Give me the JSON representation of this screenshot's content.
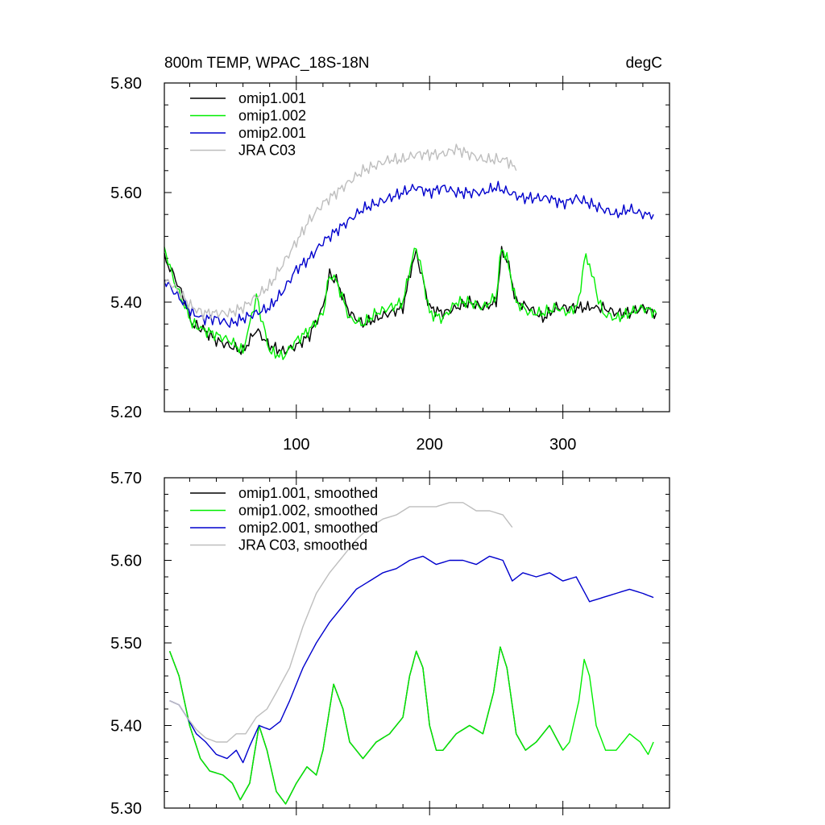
{
  "colors": {
    "omip1_001": "#000000",
    "omip1_002": "#00ee00",
    "omip2_001": "#0000cd",
    "jra": "#bebebe"
  },
  "chart_data": [
    {
      "type": "line",
      "title_left": "800m TEMP, WPAC_18S-18N",
      "title_right": "degC",
      "xlabel": "",
      "ylabel": "",
      "xlim": [
        1,
        380
      ],
      "ylim": [
        5.2,
        5.8
      ],
      "xticks": [
        100,
        200,
        300
      ],
      "xtick_labels": [
        "100",
        "200",
        "300"
      ],
      "yticks": [
        5.2,
        5.4,
        5.6,
        5.8
      ],
      "ytick_labels": [
        "5.20",
        "5.40",
        "5.60",
        "5.80"
      ],
      "legend_position": "top-left",
      "series": [
        {
          "name": "omip1.001",
          "color_key": "omip1_001",
          "x": [
            1,
            8,
            15,
            22,
            30,
            40,
            50,
            60,
            70,
            80,
            90,
            100,
            110,
            120,
            125,
            130,
            140,
            150,
            160,
            170,
            180,
            187,
            190,
            193,
            200,
            210,
            220,
            230,
            240,
            250,
            254,
            258,
            265,
            275,
            285,
            295,
            305,
            312,
            316,
            320,
            325,
            330,
            340,
            350,
            360,
            370
          ],
          "values": [
            5.48,
            5.45,
            5.41,
            5.36,
            5.35,
            5.33,
            5.32,
            5.31,
            5.35,
            5.32,
            5.31,
            5.32,
            5.34,
            5.39,
            5.45,
            5.44,
            5.38,
            5.36,
            5.37,
            5.38,
            5.39,
            5.47,
            5.49,
            5.46,
            5.39,
            5.38,
            5.39,
            5.4,
            5.39,
            5.4,
            5.49,
            5.48,
            5.4,
            5.39,
            5.37,
            5.39,
            5.39,
            5.39,
            5.39,
            5.39,
            5.39,
            5.39,
            5.38,
            5.38,
            5.39,
            5.38
          ]
        },
        {
          "name": "omip1.002",
          "color_key": "omip1_002",
          "x": [
            1,
            8,
            15,
            22,
            30,
            40,
            50,
            60,
            65,
            70,
            75,
            80,
            90,
            100,
            110,
            120,
            125,
            130,
            140,
            150,
            160,
            170,
            180,
            187,
            190,
            193,
            200,
            210,
            220,
            230,
            240,
            250,
            254,
            258,
            265,
            275,
            285,
            295,
            305,
            312,
            316,
            320,
            325,
            330,
            340,
            350,
            360,
            370
          ],
          "values": [
            5.5,
            5.44,
            5.4,
            5.36,
            5.35,
            5.34,
            5.33,
            5.31,
            5.36,
            5.41,
            5.36,
            5.31,
            5.3,
            5.33,
            5.35,
            5.38,
            5.45,
            5.44,
            5.37,
            5.36,
            5.38,
            5.39,
            5.4,
            5.48,
            5.5,
            5.47,
            5.38,
            5.37,
            5.4,
            5.4,
            5.39,
            5.41,
            5.5,
            5.48,
            5.4,
            5.38,
            5.38,
            5.39,
            5.38,
            5.4,
            5.48,
            5.47,
            5.42,
            5.38,
            5.37,
            5.38,
            5.39,
            5.38
          ]
        },
        {
          "name": "omip2.001",
          "color_key": "omip2_001",
          "x": [
            1,
            8,
            15,
            22,
            30,
            40,
            50,
            60,
            70,
            80,
            90,
            100,
            110,
            120,
            130,
            140,
            150,
            160,
            170,
            180,
            190,
            200,
            210,
            220,
            230,
            240,
            250,
            260,
            270,
            280,
            290,
            300,
            310,
            320,
            330,
            340,
            350,
            360,
            368
          ],
          "values": [
            5.44,
            5.42,
            5.4,
            5.38,
            5.37,
            5.37,
            5.36,
            5.37,
            5.38,
            5.39,
            5.42,
            5.46,
            5.48,
            5.51,
            5.53,
            5.55,
            5.57,
            5.58,
            5.59,
            5.6,
            5.61,
            5.6,
            5.61,
            5.6,
            5.6,
            5.6,
            5.61,
            5.6,
            5.59,
            5.59,
            5.59,
            5.58,
            5.59,
            5.58,
            5.57,
            5.56,
            5.57,
            5.56,
            5.56
          ]
        },
        {
          "name": "JRA C03",
          "color_key": "jra",
          "x": [
            1,
            8,
            15,
            22,
            30,
            40,
            50,
            60,
            70,
            80,
            90,
            100,
            110,
            120,
            130,
            140,
            150,
            160,
            170,
            180,
            190,
            200,
            210,
            220,
            230,
            240,
            250,
            258,
            265
          ],
          "values": [
            5.44,
            5.43,
            5.41,
            5.39,
            5.38,
            5.38,
            5.38,
            5.39,
            5.41,
            5.43,
            5.47,
            5.51,
            5.55,
            5.58,
            5.6,
            5.62,
            5.64,
            5.65,
            5.66,
            5.66,
            5.67,
            5.67,
            5.67,
            5.68,
            5.67,
            5.66,
            5.66,
            5.66,
            5.64
          ]
        }
      ]
    },
    {
      "type": "line",
      "title_left": "",
      "title_right": "",
      "xlabel": "",
      "ylabel": "",
      "xlim": [
        1,
        380
      ],
      "ylim": [
        5.3,
        5.7
      ],
      "xticks": [
        100,
        200,
        300
      ],
      "xtick_labels": [
        "",
        "",
        ""
      ],
      "yticks": [
        5.3,
        5.4,
        5.5,
        5.6,
        5.7
      ],
      "ytick_labels": [
        "5.30",
        "5.40",
        "5.50",
        "5.60",
        "5.70"
      ],
      "legend_position": "top-left",
      "series": [
        {
          "name": "omip1.001, smoothed",
          "color_key": "omip1_001",
          "x": [
            5,
            12,
            20,
            28,
            35,
            45,
            52,
            58,
            65,
            68,
            72,
            78,
            85,
            92,
            100,
            108,
            115,
            120,
            125,
            128,
            135,
            140,
            150,
            160,
            170,
            180,
            185,
            190,
            195,
            200,
            205,
            210,
            220,
            230,
            240,
            248,
            253,
            258,
            265,
            272,
            280,
            290,
            300
          ],
          "values": [
            5.49,
            5.46,
            5.4,
            5.36,
            5.345,
            5.34,
            5.33,
            5.31,
            5.33,
            5.36,
            5.4,
            5.37,
            5.32,
            5.305,
            5.33,
            5.35,
            5.34,
            5.37,
            5.42,
            5.45,
            5.42,
            5.38,
            5.36,
            5.38,
            5.39,
            5.41,
            5.46,
            5.49,
            5.47,
            5.4,
            5.37,
            5.37,
            5.39,
            5.4,
            5.39,
            5.44,
            5.495,
            5.47,
            5.39,
            5.37,
            5.38,
            5.4,
            5.37
          ]
        },
        {
          "name": "omip1.002, smoothed",
          "color_key": "omip1_002",
          "x": [
            5,
            12,
            20,
            28,
            35,
            45,
            52,
            58,
            65,
            68,
            72,
            78,
            85,
            92,
            100,
            108,
            115,
            120,
            125,
            128,
            135,
            140,
            150,
            160,
            170,
            180,
            185,
            190,
            195,
            200,
            205,
            210,
            220,
            230,
            240,
            248,
            253,
            258,
            265,
            272,
            280,
            290,
            300,
            305,
            312,
            316,
            320,
            325,
            332,
            340,
            350,
            358,
            364,
            368
          ],
          "values": [
            5.49,
            5.46,
            5.4,
            5.36,
            5.345,
            5.34,
            5.33,
            5.31,
            5.33,
            5.36,
            5.4,
            5.37,
            5.32,
            5.305,
            5.33,
            5.35,
            5.34,
            5.37,
            5.42,
            5.45,
            5.42,
            5.38,
            5.36,
            5.38,
            5.39,
            5.41,
            5.46,
            5.49,
            5.47,
            5.4,
            5.37,
            5.37,
            5.39,
            5.4,
            5.39,
            5.44,
            5.495,
            5.47,
            5.39,
            5.37,
            5.38,
            5.4,
            5.37,
            5.38,
            5.43,
            5.48,
            5.46,
            5.4,
            5.37,
            5.37,
            5.39,
            5.38,
            5.365,
            5.38
          ]
        },
        {
          "name": "omip2.001, smoothed",
          "color_key": "omip2_001",
          "x": [
            5,
            12,
            18,
            25,
            32,
            40,
            48,
            55,
            60,
            65,
            72,
            80,
            88,
            95,
            105,
            115,
            125,
            135,
            145,
            155,
            165,
            175,
            185,
            195,
            205,
            215,
            225,
            235,
            245,
            255,
            262,
            270,
            280,
            290,
            300,
            310,
            320,
            330,
            340,
            350,
            360,
            368
          ],
          "values": [
            5.43,
            5.425,
            5.41,
            5.39,
            5.38,
            5.365,
            5.36,
            5.37,
            5.355,
            5.375,
            5.4,
            5.395,
            5.405,
            5.43,
            5.47,
            5.5,
            5.525,
            5.545,
            5.565,
            5.575,
            5.585,
            5.59,
            5.6,
            5.605,
            5.595,
            5.6,
            5.6,
            5.595,
            5.605,
            5.6,
            5.575,
            5.585,
            5.58,
            5.585,
            5.575,
            5.58,
            5.55,
            5.555,
            5.56,
            5.565,
            5.56,
            5.555
          ]
        },
        {
          "name": "JRA C03, smoothed",
          "color_key": "jra",
          "x": [
            5,
            12,
            18,
            25,
            32,
            40,
            48,
            55,
            62,
            70,
            78,
            85,
            95,
            105,
            115,
            125,
            135,
            145,
            155,
            165,
            175,
            185,
            195,
            205,
            215,
            225,
            235,
            245,
            255,
            262
          ],
          "values": [
            5.43,
            5.425,
            5.41,
            5.395,
            5.385,
            5.38,
            5.38,
            5.39,
            5.39,
            5.41,
            5.42,
            5.44,
            5.47,
            5.52,
            5.56,
            5.585,
            5.605,
            5.625,
            5.64,
            5.65,
            5.655,
            5.665,
            5.665,
            5.665,
            5.67,
            5.67,
            5.66,
            5.66,
            5.655,
            5.64
          ]
        }
      ]
    }
  ]
}
